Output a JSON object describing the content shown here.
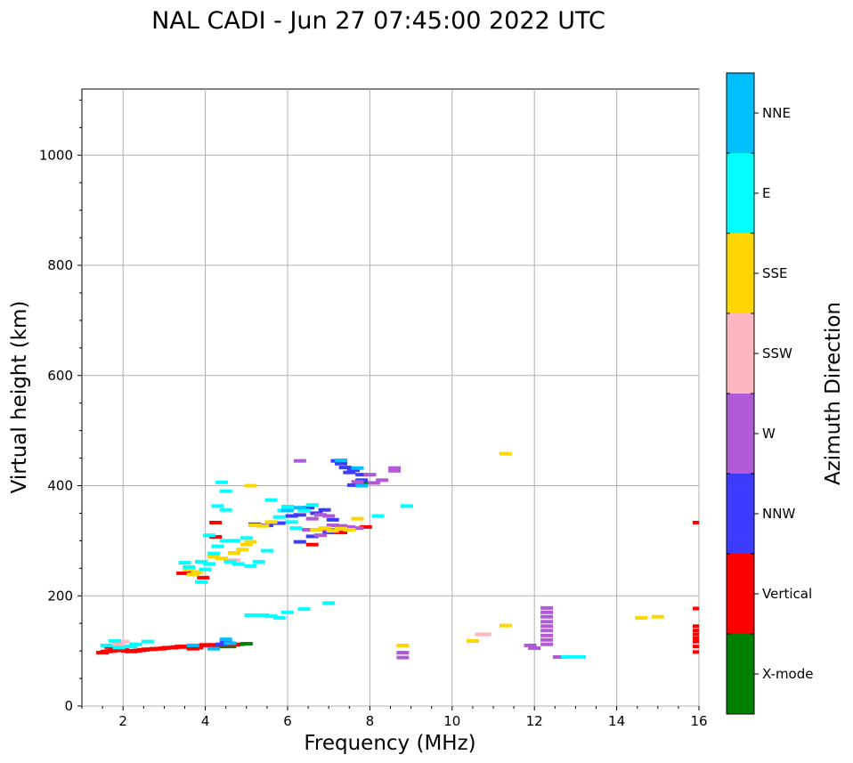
{
  "chart_data": {
    "type": "scatter",
    "title": "NAL CADI - Jun 27 07:45:00 2022 UTC",
    "xlabel": "Frequency (MHz)",
    "ylabel": "Virtual height (km)",
    "xlim": [
      1,
      16
    ],
    "ylim": [
      0,
      1120
    ],
    "xticks": [
      2,
      4,
      6,
      8,
      10,
      12,
      14,
      16
    ],
    "yticks": [
      0,
      200,
      400,
      600,
      800,
      1000
    ],
    "grid": true,
    "colorbar": {
      "label": "Azimuth Direction",
      "categories": [
        "X-mode",
        "Vertical",
        "NNW",
        "W",
        "SSW",
        "SSE",
        "E",
        "NNE"
      ],
      "colors": [
        "#008000",
        "#ff0000",
        "#3c3cff",
        "#b05ad6",
        "#ffb6c1",
        "#ffd700",
        "#00ffff",
        "#00bfff"
      ]
    },
    "series": [
      {
        "name": "X-mode",
        "points": [
          [
            4.3,
            108
          ],
          [
            4.6,
            108
          ],
          [
            4.8,
            112
          ],
          [
            5.0,
            113
          ],
          [
            7.8,
            405
          ],
          [
            4.5,
            110
          ]
        ]
      },
      {
        "name": "Vertical",
        "points": [
          [
            1.5,
            97
          ],
          [
            1.6,
            99
          ],
          [
            1.7,
            100
          ],
          [
            1.8,
            101
          ],
          [
            1.9,
            101
          ],
          [
            2.0,
            103
          ],
          [
            2.1,
            100
          ],
          [
            2.2,
            99
          ],
          [
            2.3,
            100
          ],
          [
            2.4,
            101
          ],
          [
            2.5,
            102
          ],
          [
            2.6,
            103
          ],
          [
            2.7,
            103
          ],
          [
            2.8,
            104
          ],
          [
            2.9,
            104
          ],
          [
            3.0,
            105
          ],
          [
            3.1,
            106
          ],
          [
            3.2,
            106
          ],
          [
            3.3,
            107
          ],
          [
            3.4,
            108
          ],
          [
            3.5,
            108
          ],
          [
            3.6,
            107
          ],
          [
            3.7,
            104
          ],
          [
            3.8,
            106
          ],
          [
            3.9,
            110
          ],
          [
            4.0,
            111
          ],
          [
            4.1,
            110
          ],
          [
            4.2,
            111
          ],
          [
            4.4,
            111
          ],
          [
            4.7,
            111
          ],
          [
            1.7,
            107
          ],
          [
            3.45,
            241
          ],
          [
            3.75,
            243
          ],
          [
            3.95,
            233
          ],
          [
            4.25,
            333
          ],
          [
            4.25,
            307
          ],
          [
            6.6,
            293
          ],
          [
            7.3,
            315
          ],
          [
            7.9,
            325
          ],
          [
            16.0,
            98
          ],
          [
            16.0,
            108
          ],
          [
            16.0,
            117
          ],
          [
            16.0,
            123
          ],
          [
            16.0,
            130
          ],
          [
            16.0,
            137
          ],
          [
            16.0,
            145
          ],
          [
            16.0,
            177
          ],
          [
            16.0,
            333
          ]
        ]
      },
      {
        "name": "NNW",
        "points": [
          [
            4.5,
            118
          ],
          [
            4.4,
            112
          ],
          [
            5.2,
            330
          ],
          [
            5.5,
            328
          ],
          [
            5.8,
            332
          ],
          [
            6.1,
            345
          ],
          [
            6.3,
            347
          ],
          [
            6.5,
            360
          ],
          [
            6.7,
            350
          ],
          [
            6.9,
            356
          ],
          [
            7.1,
            338
          ],
          [
            6.3,
            298
          ],
          [
            6.6,
            308
          ],
          [
            7.0,
            315
          ],
          [
            7.2,
            445
          ],
          [
            7.3,
            440
          ],
          [
            7.4,
            433
          ],
          [
            7.6,
            428
          ],
          [
            7.8,
            420
          ],
          [
            7.8,
            410
          ],
          [
            7.5,
            424
          ],
          [
            7.6,
            401
          ]
        ]
      },
      {
        "name": "W",
        "points": [
          [
            6.5,
            320
          ],
          [
            6.8,
            310
          ],
          [
            7.0,
            320
          ],
          [
            7.1,
            328
          ],
          [
            7.3,
            327
          ],
          [
            7.5,
            325
          ],
          [
            7.7,
            323
          ],
          [
            6.6,
            340
          ],
          [
            6.8,
            347
          ],
          [
            7.0,
            345
          ],
          [
            8.0,
            420
          ],
          [
            8.1,
            405
          ],
          [
            8.3,
            410
          ],
          [
            8.6,
            432
          ],
          [
            8.6,
            427
          ],
          [
            7.7,
            407
          ],
          [
            6.3,
            445
          ],
          [
            8.8,
            97
          ],
          [
            8.8,
            88
          ],
          [
            12.0,
            105
          ],
          [
            11.9,
            110
          ],
          [
            12.3,
            178
          ],
          [
            12.3,
            170
          ],
          [
            12.3,
            162
          ],
          [
            12.3,
            153
          ],
          [
            12.3,
            145
          ],
          [
            12.3,
            137
          ],
          [
            12.3,
            128
          ],
          [
            12.3,
            120
          ],
          [
            12.3,
            112
          ],
          [
            12.6,
            89
          ]
        ]
      },
      {
        "name": "SSW",
        "points": [
          [
            10.7,
            130
          ],
          [
            10.8,
            130
          ],
          [
            2.0,
            117
          ],
          [
            1.9,
            112
          ],
          [
            4.7,
            265
          ],
          [
            6.4,
            353
          ]
        ]
      },
      {
        "name": "SSE",
        "points": [
          [
            3.6,
            248
          ],
          [
            3.8,
            243
          ],
          [
            3.7,
            239
          ],
          [
            4.2,
            271
          ],
          [
            4.4,
            268
          ],
          [
            4.7,
            278
          ],
          [
            4.9,
            284
          ],
          [
            5.0,
            293
          ],
          [
            5.1,
            298
          ],
          [
            5.2,
            328
          ],
          [
            5.4,
            327
          ],
          [
            5.6,
            334
          ],
          [
            6.7,
            320
          ],
          [
            6.9,
            323
          ],
          [
            7.1,
            318
          ],
          [
            7.3,
            322
          ],
          [
            7.5,
            320
          ],
          [
            7.7,
            340
          ],
          [
            11.3,
            458
          ],
          [
            11.3,
            146
          ],
          [
            10.5,
            118
          ],
          [
            14.6,
            160
          ],
          [
            15.0,
            162
          ],
          [
            8.8,
            110
          ],
          [
            5.1,
            400
          ]
        ]
      },
      {
        "name": "E",
        "points": [
          [
            1.6,
            110
          ],
          [
            1.8,
            118
          ],
          [
            1.9,
            106
          ],
          [
            2.2,
            108
          ],
          [
            2.3,
            112
          ],
          [
            2.6,
            117
          ],
          [
            3.5,
            260
          ],
          [
            3.6,
            252
          ],
          [
            3.9,
            262
          ],
          [
            4.0,
            248
          ],
          [
            4.1,
            258
          ],
          [
            4.2,
            277
          ],
          [
            4.3,
            290
          ],
          [
            4.5,
            300
          ],
          [
            4.6,
            262
          ],
          [
            4.8,
            258
          ],
          [
            5.1,
            254
          ],
          [
            5.3,
            262
          ],
          [
            5.5,
            282
          ],
          [
            5.6,
            374
          ],
          [
            5.8,
            343
          ],
          [
            5.9,
            355
          ],
          [
            6.0,
            362
          ],
          [
            6.1,
            334
          ],
          [
            6.2,
            323
          ],
          [
            6.4,
            355
          ],
          [
            6.6,
            365
          ],
          [
            8.2,
            345
          ],
          [
            8.9,
            363
          ],
          [
            5.1,
            165
          ],
          [
            5.4,
            165
          ],
          [
            5.6,
            163
          ],
          [
            5.8,
            160
          ],
          [
            6.0,
            170
          ],
          [
            6.4,
            176
          ],
          [
            7.0,
            187
          ],
          [
            4.5,
            390
          ],
          [
            4.4,
            406
          ],
          [
            4.3,
            363
          ],
          [
            4.5,
            356
          ],
          [
            12.8,
            89
          ],
          [
            13.1,
            89
          ],
          [
            4.7,
            300
          ],
          [
            3.9,
            225
          ],
          [
            5.0,
            305
          ],
          [
            4.1,
            310
          ]
        ]
      },
      {
        "name": "NNE",
        "points": [
          [
            4.6,
            114
          ],
          [
            4.5,
            121
          ],
          [
            4.2,
            104
          ],
          [
            3.7,
            110
          ],
          [
            6.0,
            355
          ],
          [
            7.3,
            446
          ],
          [
            7.7,
            432
          ],
          [
            7.8,
            400
          ],
          [
            6.3,
            360
          ]
        ]
      }
    ]
  }
}
